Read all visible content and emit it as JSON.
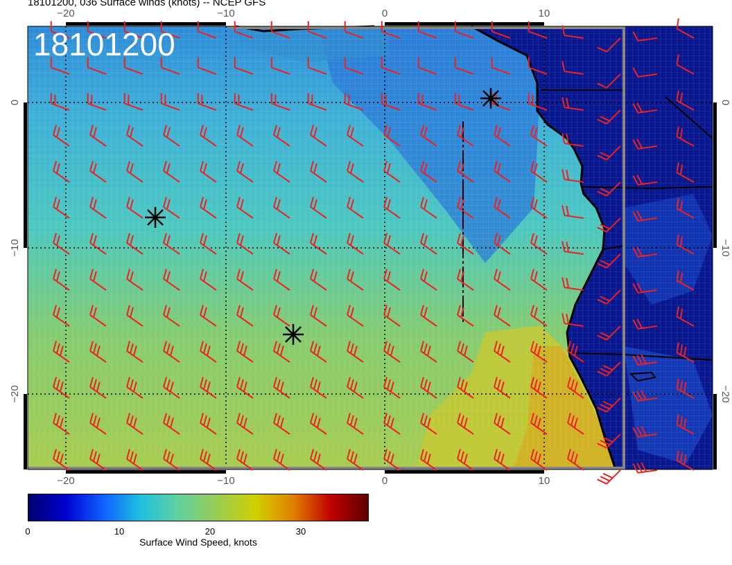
{
  "header": {
    "title": "18101200, 036 Surface winds (knots) -- NCEP GFS"
  },
  "map": {
    "valid_label": "18101200",
    "lon_ticks": [
      "−20",
      "−10",
      "0",
      "10"
    ],
    "lat_ticks": [
      "0",
      "−10",
      "−20"
    ]
  },
  "colorbar": {
    "title": "Surface Wind Speed, knots",
    "ticks": [
      "0",
      "10",
      "20",
      "30"
    ],
    "colors": [
      "#000070",
      "#0000d0",
      "#1060ff",
      "#20c0e0",
      "#60d0a0",
      "#9ccc50",
      "#d0d000",
      "#e08000",
      "#c00000",
      "#600000"
    ]
  },
  "colors": {
    "barb": "#ee2020",
    "land": "#0a1890",
    "coast": "#000000",
    "gridline": "#000000"
  }
}
